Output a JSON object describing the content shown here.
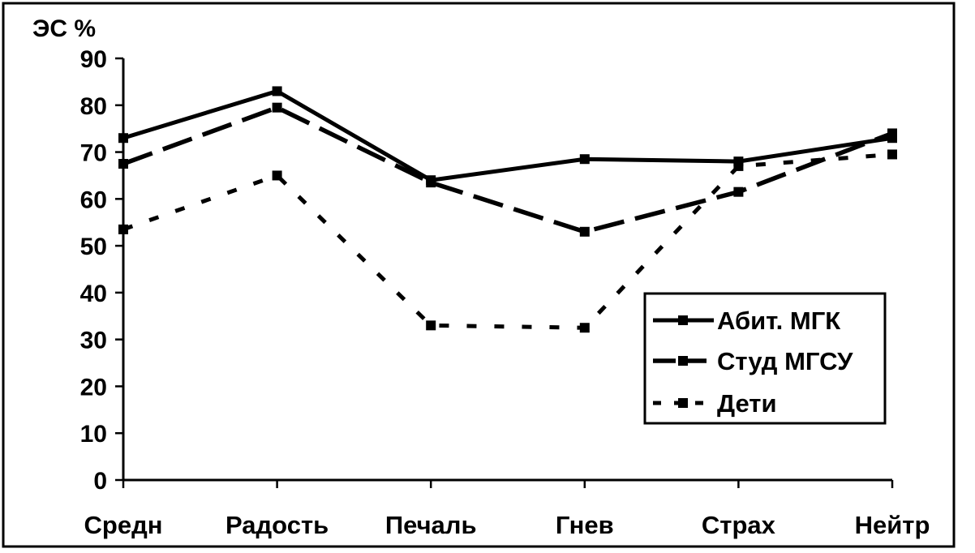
{
  "chart_data": {
    "type": "line",
    "title": "",
    "ylabel": "ЭС %",
    "xlabel": "",
    "ylim": [
      0,
      90
    ],
    "yticks": [
      "0",
      "10",
      "20",
      "30",
      "40",
      "50",
      "60",
      "70",
      "80",
      "90"
    ],
    "categories": [
      "Средн",
      "Радость",
      "Печаль",
      "Гнев",
      "Страх",
      "Нейтр"
    ],
    "legend_position": "bottom-right inside plot",
    "grid": false,
    "series": [
      {
        "name": "Абит. МГК",
        "style": "solid",
        "values": [
          73,
          83,
          64,
          68.5,
          68,
          73
        ]
      },
      {
        "name": "Студ МГСУ",
        "style": "long-dash",
        "values": [
          67.5,
          79.5,
          63.5,
          53,
          61.5,
          74
        ]
      },
      {
        "name": "Дети",
        "style": "short-dash",
        "values": [
          53.5,
          65,
          33,
          32.5,
          67,
          69.5
        ]
      }
    ]
  }
}
